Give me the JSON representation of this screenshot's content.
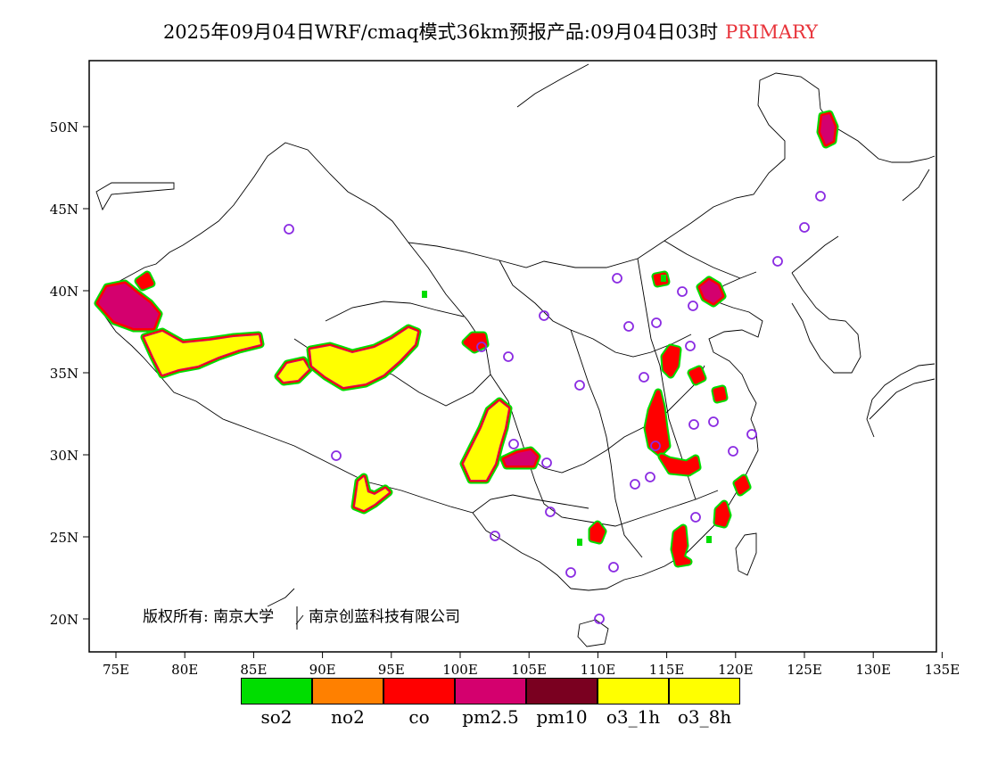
{
  "title": {
    "main": "2025年09月04日WRF/cmaq模式36km预报产品:09月04日03时",
    "tag": "PRIMARY"
  },
  "axes": {
    "lon_labels": [
      "75E",
      "80E",
      "85E",
      "90E",
      "95E",
      "100E",
      "105E",
      "110E",
      "115E",
      "120E",
      "125E",
      "130E",
      "135E"
    ],
    "lat_labels": [
      "20N",
      "25N",
      "30N",
      "35N",
      "40N",
      "45N",
      "50N"
    ],
    "lon_range": [
      73,
      135
    ],
    "lat_range": [
      18,
      54
    ]
  },
  "copyright": {
    "part1": "版权所有: 南京大学",
    "part2": "南京创蓝科技有限公司"
  },
  "legend": [
    {
      "name": "so2",
      "color": "#00dd00"
    },
    {
      "name": "no2",
      "color": "#ff8000"
    },
    {
      "name": "co",
      "color": "#ff0000"
    },
    {
      "name": "pm2.5",
      "color": "#d4006e"
    },
    {
      "name": "pm10",
      "color": "#7a0020"
    },
    {
      "name": "o3_1h",
      "color": "#ffff00"
    },
    {
      "name": "o3_8h",
      "color": "#ffff00"
    }
  ],
  "colors": {
    "outline": "#00dd00",
    "red": "#ff0000",
    "magenta": "#d4006e",
    "yellow": "#ffff00",
    "station": "#8a2be2",
    "title_tag": "#e8333a"
  }
}
